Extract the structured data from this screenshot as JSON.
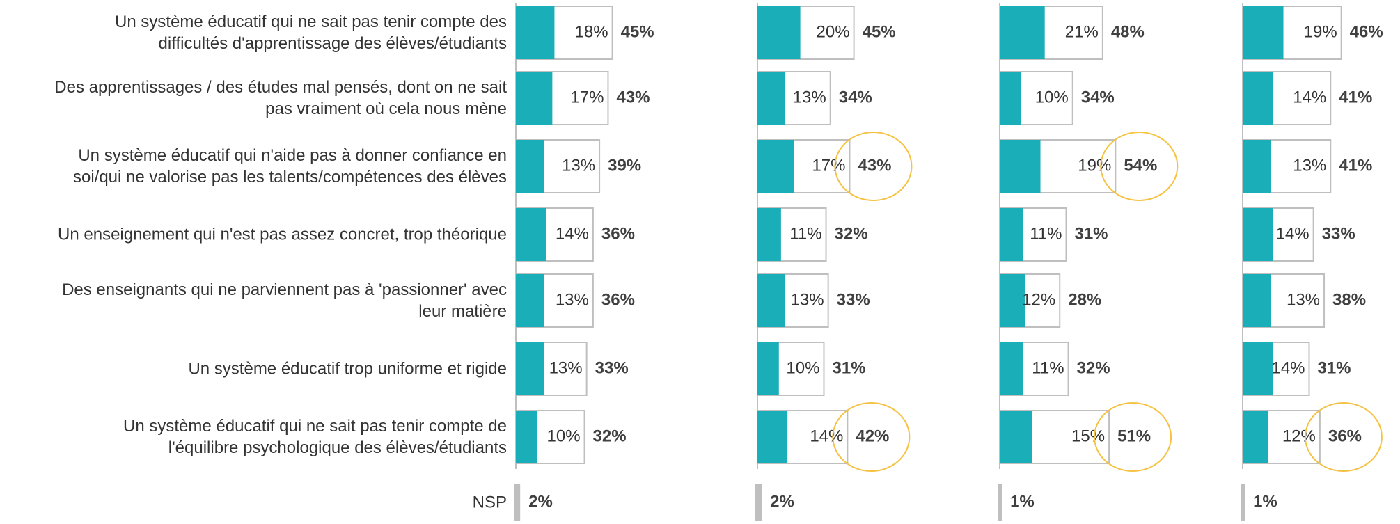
{
  "chart_data": {
    "type": "bar",
    "orientation": "horizontal",
    "color": "#1aafb8",
    "outline_color": "#bfbfbf",
    "highlight_color": "#f5c242",
    "categories": [
      "Un système éducatif qui ne sait pas tenir compte des\ndifficultés d'apprentissage des élèves/étudiants",
      "Des apprentissages / des études mal pensés, dont on ne sait\npas vraiment où cela nous mène",
      "Un système éducatif qui n'aide pas à donner confiance en\nsoi/qui ne valorise pas les talents/compétences des élèves",
      "Un enseignement qui n'est pas assez concret, trop théorique",
      "Des enseignants qui ne parviennent pas à 'passionner' avec\nleur matière",
      "Un système éducatif trop uniforme et rigide",
      "Un système éducatif qui ne sait pas tenir compte de\nl'équilibre psychologique des élèves/étudiants"
    ],
    "nsp_category": "NSP",
    "panels": [
      {
        "first": [
          18,
          17,
          13,
          14,
          13,
          13,
          10
        ],
        "first_labels": [
          "18%",
          "17%",
          "13%",
          "14%",
          "13%",
          "13%",
          "10%"
        ],
        "total": [
          45,
          43,
          39,
          36,
          36,
          33,
          32
        ],
        "total_labels": [
          "45%",
          "43%",
          "39%",
          "36%",
          "36%",
          "33%",
          "32%"
        ],
        "nsp": 2,
        "nsp_label": "2%",
        "highlighted": []
      },
      {
        "first": [
          20,
          13,
          17,
          11,
          13,
          10,
          14
        ],
        "first_labels": [
          "20%",
          "13%",
          "17%",
          "11%",
          "13%",
          "10%",
          "14%"
        ],
        "total": [
          45,
          34,
          43,
          32,
          33,
          31,
          42
        ],
        "total_labels": [
          "45%",
          "34%",
          "43%",
          "32%",
          "33%",
          "31%",
          "42%"
        ],
        "nsp": 2,
        "nsp_label": "2%",
        "highlighted": [
          2,
          6
        ]
      },
      {
        "first": [
          21,
          10,
          19,
          11,
          12,
          11,
          15
        ],
        "first_labels": [
          "21%",
          "10%",
          "19%",
          "11%",
          "12%",
          "11%",
          "15%"
        ],
        "total": [
          48,
          34,
          54,
          31,
          28,
          32,
          51
        ],
        "total_labels": [
          "48%",
          "34%",
          "54%",
          "31%",
          "28%",
          "32%",
          "51%"
        ],
        "nsp": 1,
        "nsp_label": "1%",
        "highlighted": [
          2,
          6
        ]
      },
      {
        "first": [
          19,
          14,
          13,
          14,
          13,
          14,
          12
        ],
        "first_labels": [
          "19%",
          "14%",
          "13%",
          "14%",
          "13%",
          "14%",
          "12%"
        ],
        "total": [
          46,
          41,
          41,
          33,
          38,
          31,
          36
        ],
        "total_labels": [
          "46%",
          "41%",
          "41%",
          "33%",
          "38%",
          "31%",
          "36%"
        ],
        "nsp": 1,
        "nsp_label": "1%",
        "highlighted": [
          6
        ]
      }
    ]
  }
}
